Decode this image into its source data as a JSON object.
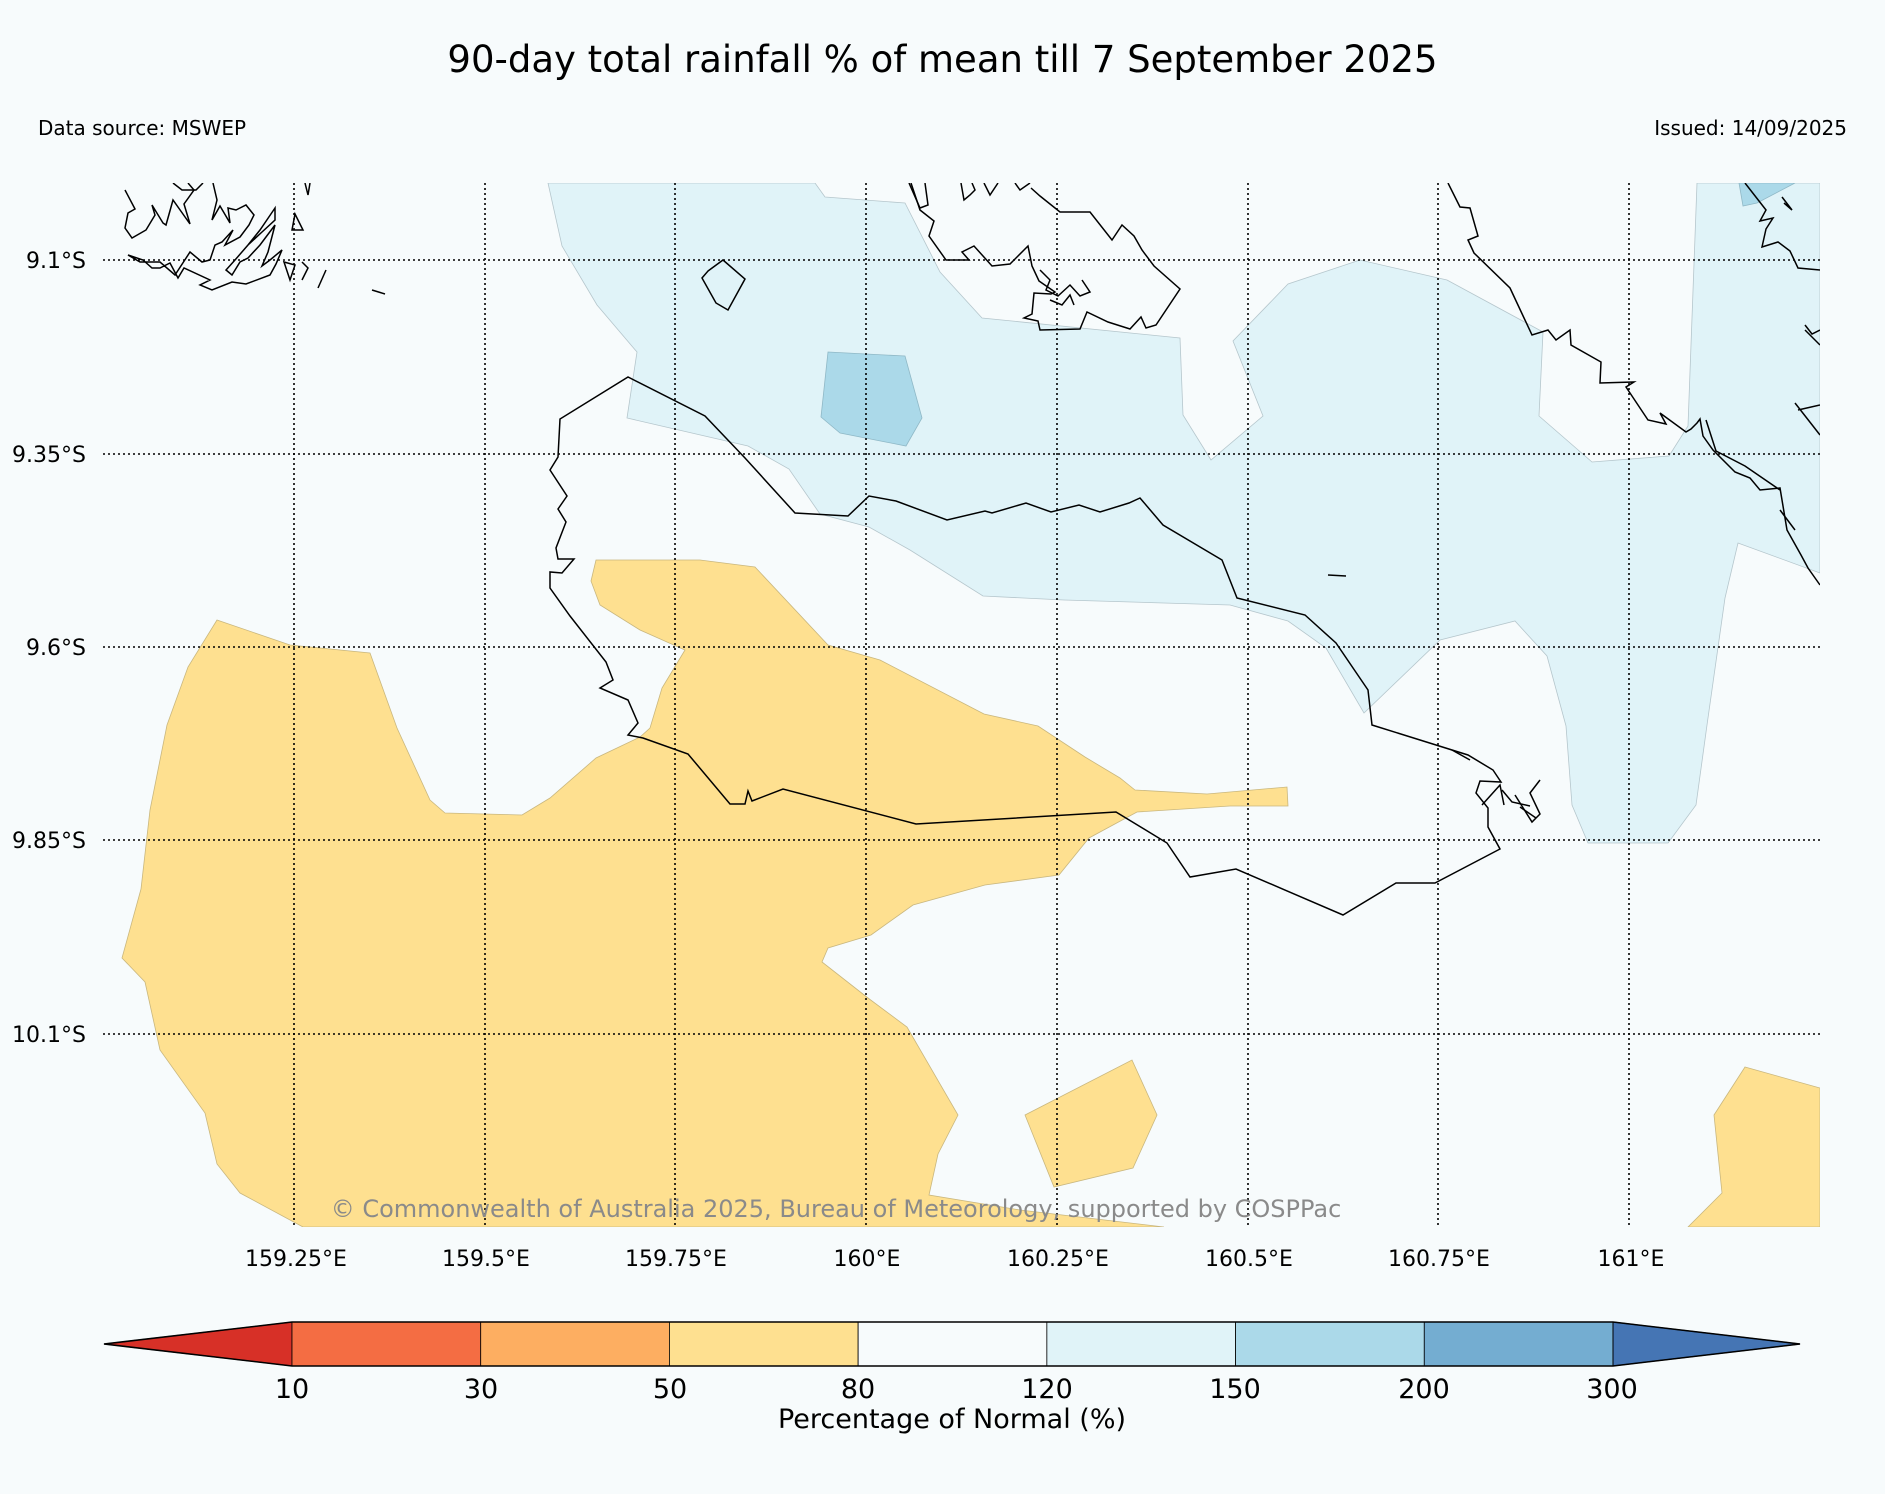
{
  "title": "90-day total rainfall % of mean till 7 September 2025",
  "data_source": "Data source: MSWEP",
  "issued": "Issued: 14/09/2025",
  "copyright": "© Commonwealth of Australia 2025, Bureau of Meteorology, supported by COSPPac",
  "map": {
    "lat_labels": [
      "9.1°S",
      "9.35°S",
      "9.6°S",
      "9.85°S",
      "10.1°S"
    ],
    "lon_labels": [
      "159.25°E",
      "159.5°E",
      "159.75°E",
      "160°E",
      "160.25°E",
      "160.5°E",
      "160.75°E",
      "161°E"
    ],
    "gridlines": "dotted"
  },
  "legend": {
    "label": "Percentage of Normal (%)",
    "ticks": [
      "10",
      "30",
      "50",
      "80",
      "120",
      "150",
      "200",
      "300"
    ],
    "colors": [
      "#d73027",
      "#f46d43",
      "#fdae61",
      "#fee090",
      "#f7fbfc",
      "#e0f3f8",
      "#abd9e9",
      "#74add1",
      "#4575b4"
    ]
  }
}
